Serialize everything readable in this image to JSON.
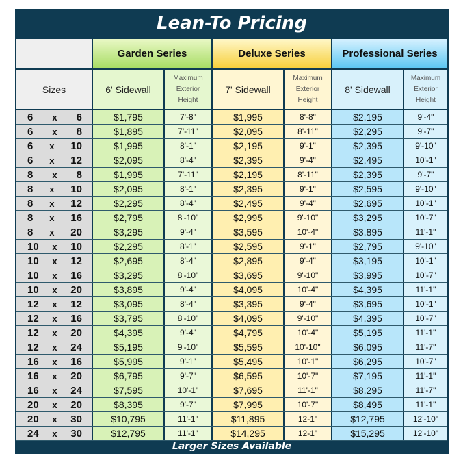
{
  "title": "Lean-To Pricing",
  "footer": "Larger Sizes Available",
  "series": {
    "garden": "Garden Series",
    "deluxe": "Deluxe Series",
    "professional": "Professional Series"
  },
  "subheaders": {
    "sizes": "Sizes",
    "garden_sidewall": "6' Sidewall",
    "deluxe_sidewall": "7' Sidewall",
    "pro_sidewall": "8' Sidewall",
    "max_height_lines": [
      "Maximum",
      "Exterior",
      "Height"
    ]
  },
  "rows": [
    {
      "w": "6",
      "x": "x",
      "l": "6",
      "g": "$1,795",
      "gh": "7'-8\"",
      "d": "$1,995",
      "dh": "8'-8\"",
      "p": "$2,195",
      "ph": "9'-4\""
    },
    {
      "w": "6",
      "x": "x",
      "l": "8",
      "g": "$1,895",
      "gh": "7'-11\"",
      "d": "$2,095",
      "dh": "8'-11\"",
      "p": "$2,295",
      "ph": "9'-7\""
    },
    {
      "w": "6",
      "x": "x",
      "l": "10",
      "g": "$1,995",
      "gh": "8'-1\"",
      "d": "$2,195",
      "dh": "9'-1\"",
      "p": "$2,395",
      "ph": "9'-10\""
    },
    {
      "w": "6",
      "x": "x",
      "l": "12",
      "g": "$2,095",
      "gh": "8'-4\"",
      "d": "$2,395",
      "dh": "9'-4\"",
      "p": "$2,495",
      "ph": "10'-1\""
    },
    {
      "w": "8",
      "x": "x",
      "l": "8",
      "g": "$1,995",
      "gh": "7'-11\"",
      "d": "$2,195",
      "dh": "8'-11\"",
      "p": "$2,395",
      "ph": "9'-7\""
    },
    {
      "w": "8",
      "x": "x",
      "l": "10",
      "g": "$2,095",
      "gh": "8'-1\"",
      "d": "$2,395",
      "dh": "9'-1\"",
      "p": "$2,595",
      "ph": "9'-10\""
    },
    {
      "w": "8",
      "x": "x",
      "l": "12",
      "g": "$2,295",
      "gh": "8'-4\"",
      "d": "$2,495",
      "dh": "9'-4\"",
      "p": "$2,695",
      "ph": "10'-1\""
    },
    {
      "w": "8",
      "x": "x",
      "l": "16",
      "g": "$2,795",
      "gh": "8'-10\"",
      "d": "$2,995",
      "dh": "9'-10\"",
      "p": "$3,295",
      "ph": "10'-7\""
    },
    {
      "w": "8",
      "x": "x",
      "l": "20",
      "g": "$3,295",
      "gh": "9'-4\"",
      "d": "$3,595",
      "dh": "10'-4\"",
      "p": "$3,895",
      "ph": "11'-1\""
    },
    {
      "w": "10",
      "x": "x",
      "l": "10",
      "g": "$2,295",
      "gh": "8'-1\"",
      "d": "$2,595",
      "dh": "9'-1\"",
      "p": "$2,795",
      "ph": "9'-10\""
    },
    {
      "w": "10",
      "x": "x",
      "l": "12",
      "g": "$2,695",
      "gh": "8'-4\"",
      "d": "$2,895",
      "dh": "9'-4\"",
      "p": "$3,195",
      "ph": "10'-1\""
    },
    {
      "w": "10",
      "x": "x",
      "l": "16",
      "g": "$3,295",
      "gh": "8'-10\"",
      "d": "$3,695",
      "dh": "9'-10\"",
      "p": "$3,995",
      "ph": "10'-7\""
    },
    {
      "w": "10",
      "x": "x",
      "l": "20",
      "g": "$3,895",
      "gh": "9'-4\"",
      "d": "$4,095",
      "dh": "10'-4\"",
      "p": "$4,395",
      "ph": "11'-1\""
    },
    {
      "w": "12",
      "x": "x",
      "l": "12",
      "g": "$3,095",
      "gh": "8'-4\"",
      "d": "$3,395",
      "dh": "9'-4\"",
      "p": "$3,695",
      "ph": "10'-1\""
    },
    {
      "w": "12",
      "x": "x",
      "l": "16",
      "g": "$3,795",
      "gh": "8'-10\"",
      "d": "$4,095",
      "dh": "9'-10\"",
      "p": "$4,395",
      "ph": "10'-7\""
    },
    {
      "w": "12",
      "x": "x",
      "l": "20",
      "g": "$4,395",
      "gh": "9'-4\"",
      "d": "$4,795",
      "dh": "10'-4\"",
      "p": "$5,195",
      "ph": "11'-1\""
    },
    {
      "w": "12",
      "x": "x",
      "l": "24",
      "g": "$5,195",
      "gh": "9'-10\"",
      "d": "$5,595",
      "dh": "10'-10\"",
      "p": "$6,095",
      "ph": "11'-7\""
    },
    {
      "w": "16",
      "x": "x",
      "l": "16",
      "g": "$5,995",
      "gh": "9'-1\"",
      "d": "$5,495",
      "dh": "10'-1\"",
      "p": "$6,295",
      "ph": "10'-7\""
    },
    {
      "w": "16",
      "x": "x",
      "l": "20",
      "g": "$6,795",
      "gh": "9'-7\"",
      "d": "$6,595",
      "dh": "10'-7\"",
      "p": "$7,195",
      "ph": "11'-1\""
    },
    {
      "w": "16",
      "x": "x",
      "l": "24",
      "g": "$7,595",
      "gh": "10'-1\"",
      "d": "$7,695",
      "dh": "11'-1\"",
      "p": "$8,295",
      "ph": "11'-7\""
    },
    {
      "w": "20",
      "x": "x",
      "l": "20",
      "g": "$8,395",
      "gh": "9'-7\"",
      "d": "$7,995",
      "dh": "10'-7\"",
      "p": "$8,495",
      "ph": "11'-1\""
    },
    {
      "w": "20",
      "x": "x",
      "l": "30",
      "g": "$10,795",
      "gh": "11'-1\"",
      "d": "$11,895",
      "dh": "12-1\"",
      "p": "$12,795",
      "ph": "12'-10\""
    },
    {
      "w": "24",
      "x": "x",
      "l": "30",
      "g": "$12,795",
      "gh": "11'-1\"",
      "d": "$14,295",
      "dh": "12-1\"",
      "p": "$15,295",
      "ph": "12'-10\""
    }
  ]
}
